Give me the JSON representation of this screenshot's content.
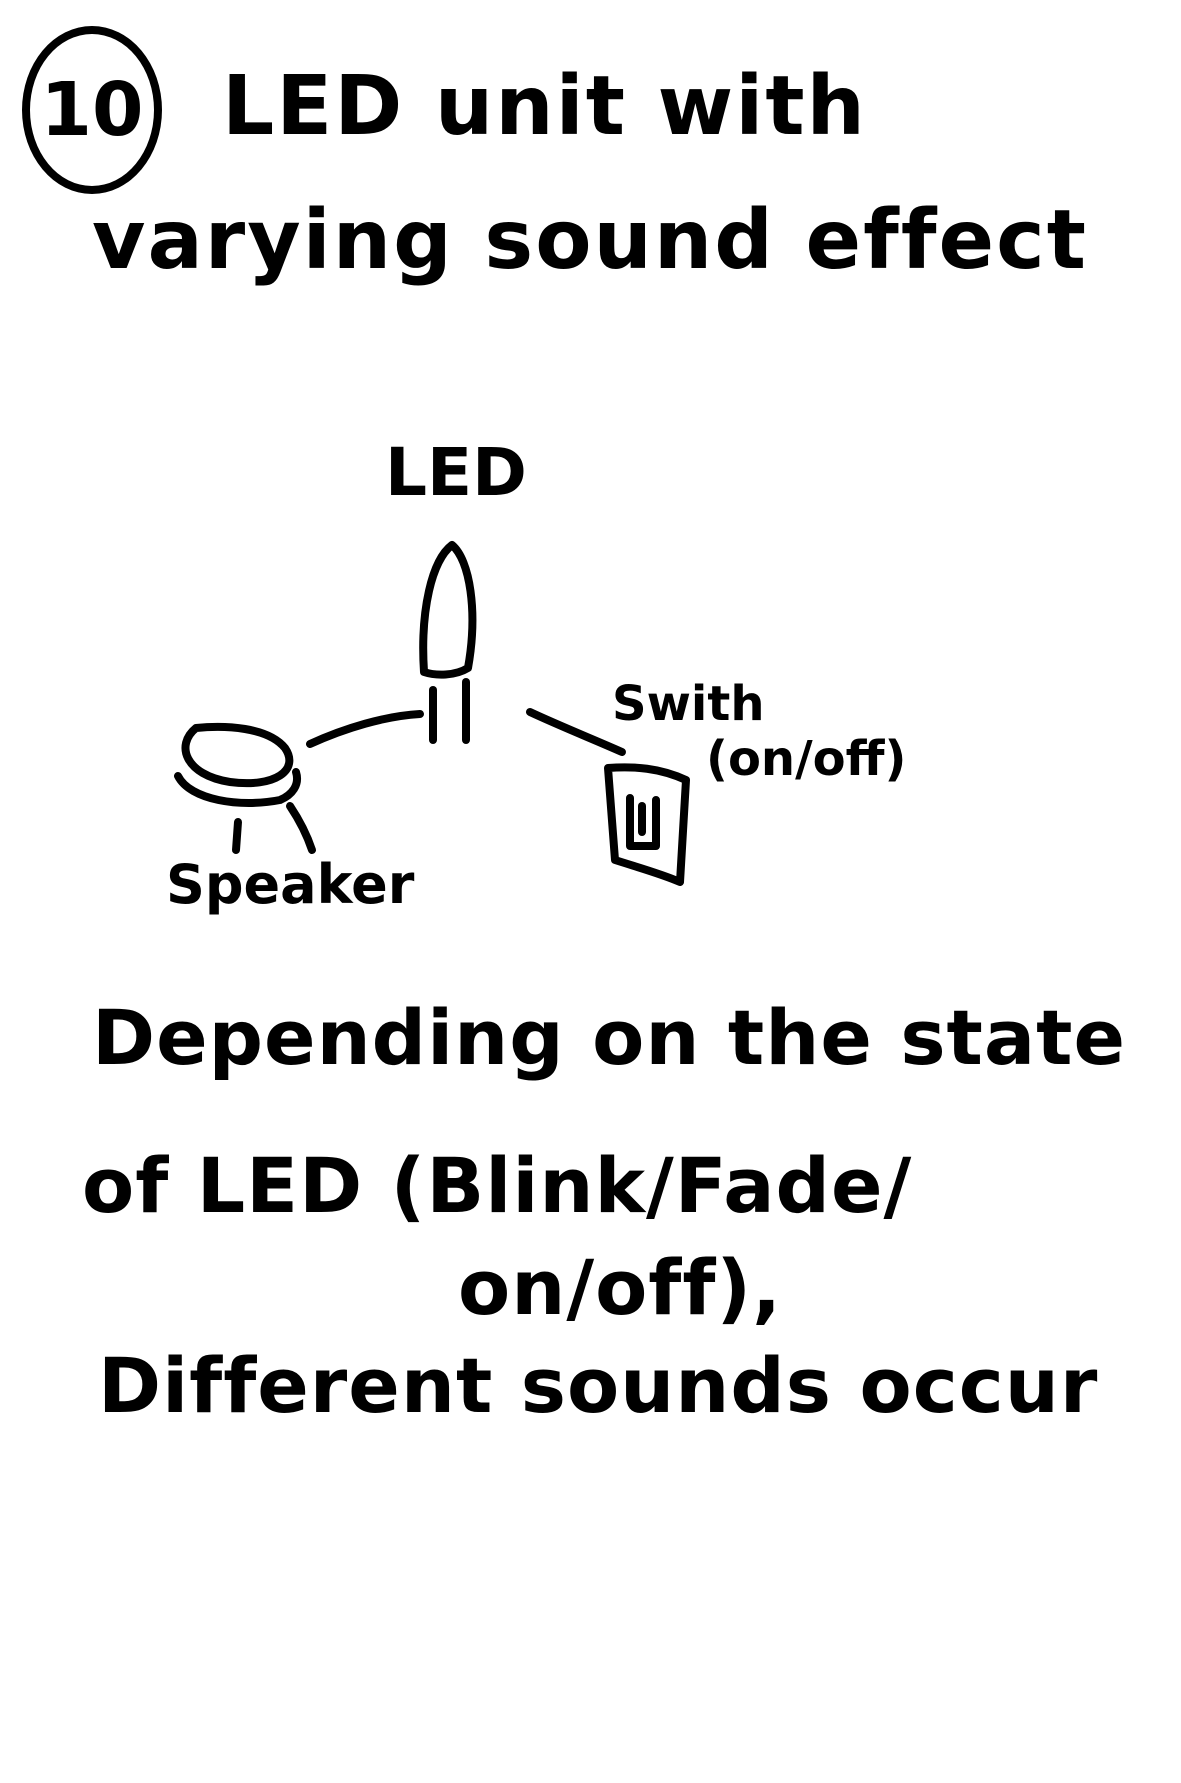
{
  "sketch": {
    "number": "10",
    "title": {
      "line1": "LED unit with",
      "line2": "varying sound effect"
    },
    "diagram": {
      "led_label": "LED",
      "switch_label": "Swith",
      "switch_state_label": "(on/off)",
      "speaker_label": "Speaker"
    },
    "description": {
      "line1": "Depending on the state",
      "line2": "of LED (Blink/Fade/",
      "line3": "on/off),",
      "line4": "Different sounds occur"
    }
  }
}
